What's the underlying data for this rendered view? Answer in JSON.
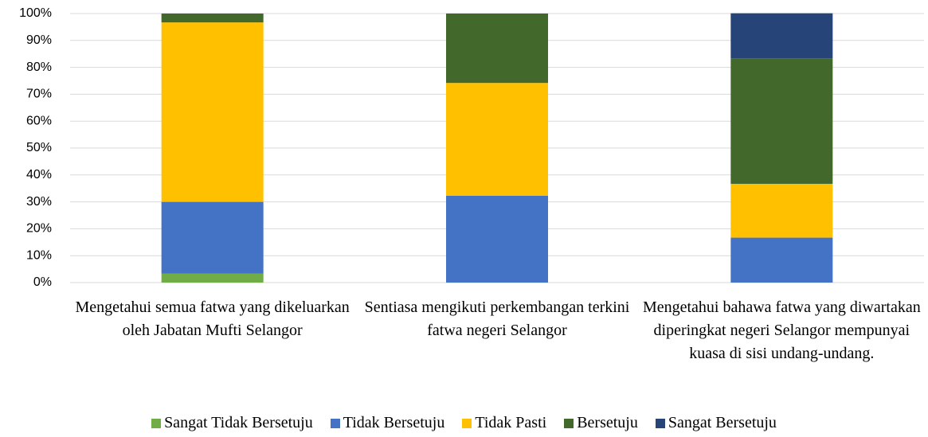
{
  "chart_data": {
    "type": "stacked_bar",
    "categories": [
      "Mengetahui semua fatwa yang dikeluarkan oleh Jabatan Mufti Selangor",
      "Sentiasa mengikuti perkembangan terkini fatwa negeri Selangor",
      "Mengetahui bahawa fatwa yang diwartakan diperingkat negeri Selangor mempunyai kuasa di sisi undang-undang."
    ],
    "series": [
      {
        "name": "Sangat Tidak Bersetuju",
        "color": "#70ad47",
        "values": [
          3.3,
          0,
          0
        ]
      },
      {
        "name": "Tidak Bersetuju",
        "color": "#4472c4",
        "values": [
          26.7,
          32.3,
          16.7
        ]
      },
      {
        "name": "Tidak Pasti",
        "color": "#ffc000",
        "values": [
          66.7,
          41.9,
          20
        ]
      },
      {
        "name": "Bersetuju",
        "color": "#43682b",
        "values": [
          3.3,
          25.8,
          46.7
        ]
      },
      {
        "name": "Sangat Bersetuju",
        "color": "#264478",
        "values": [
          0,
          0,
          16.7
        ]
      }
    ],
    "ylim": [
      0,
      100
    ],
    "yticks": [
      {
        "value": 0,
        "label": "0%"
      },
      {
        "value": 10,
        "label": "10%"
      },
      {
        "value": 20,
        "label": "20%"
      },
      {
        "value": 30,
        "label": "30%"
      },
      {
        "value": 40,
        "label": "40%"
      },
      {
        "value": 50,
        "label": "50%"
      },
      {
        "value": 60,
        "label": "60%"
      },
      {
        "value": 70,
        "label": "70%"
      },
      {
        "value": 80,
        "label": "80%"
      },
      {
        "value": 90,
        "label": "90%"
      },
      {
        "value": 100,
        "label": "100%"
      }
    ],
    "grid": true,
    "legend": "bottom"
  }
}
